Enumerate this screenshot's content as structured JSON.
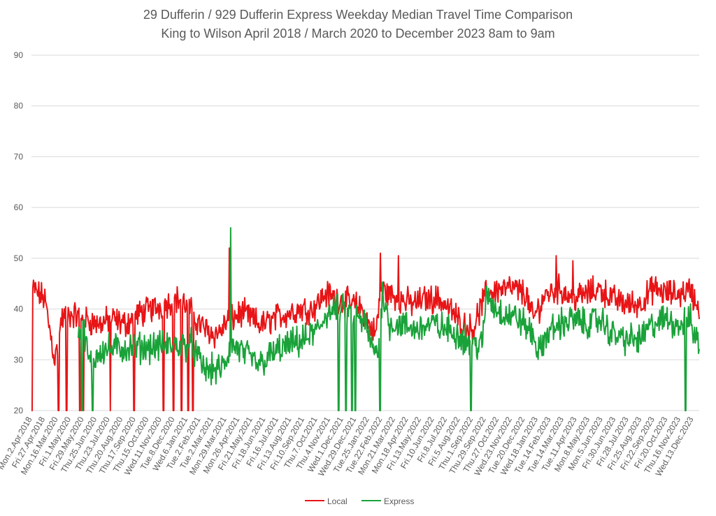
{
  "chart_data": {
    "type": "line",
    "title": "29 Dufferin / 929 Dufferin Express Weekday Median Travel Time Comparison",
    "subtitle": "King to Wilson April 2018 / March 2020 to December 2023 8am to 9am",
    "xlabel": "",
    "ylabel": "",
    "ylim": [
      20,
      90
    ],
    "yticks": [
      20,
      30,
      40,
      50,
      60,
      70,
      80,
      90
    ],
    "grid": true,
    "legend_position": "bottom",
    "x_tick_labels": [
      "Mon.2.Apr.2018",
      "Fri.27.Apr.2018",
      "Mon.16.Mar.2020",
      "Fri.1.May.2020",
      "Fri.29.May.2020",
      "Thu.25.Jun.2020",
      "Thu.23.Jul.2020",
      "Thu.20.Aug.2020",
      "Thu.17.Sep.2020",
      "Thu.15.Oct.2020",
      "Wed.11.Nov.2020",
      "Tue.8.Dec.2020",
      "Wed.6.Jan.2021",
      "Tue.2.Feb.2021",
      "Tue.2.Mar.2021",
      "Mon.29.Mar.2021",
      "Mon.26.Apr.2021",
      "Fri.21.May.2021",
      "Fri.18.Jun.2021",
      "Fri.16.Jul.2021",
      "Fri.13.Aug.2021",
      "Fri.10.Sep.2021",
      "Thu.7.Oct.2021",
      "Thu.4.Nov.2021",
      "Wed.1.Dec.2021",
      "Wed.29.Dec.2021",
      "Tue.25.Jan.2022",
      "Tue.22.Feb.2022",
      "Mon.21.Mar.2022",
      "Mon.18.Apr.2022",
      "Fri.13.May.2022",
      "Fri.10.Jun.2022",
      "Fri.8.Jul.2022",
      "Fri.5.Aug.2022",
      "Thu.1.Sep.2022",
      "Thu.29.Sep.2022",
      "Thu.27.Oct.2022",
      "Wed.23.Nov.2022",
      "Tue.20.Dec.2022",
      "Wed.18.Jan.2023",
      "Tue.14.Feb.2023",
      "Tue.14.Mar.2023",
      "Tue.11.Apr.2023",
      "Mon.8.May.2023",
      "Mon.5.Jun.2023",
      "Fri.30.Jun.2023",
      "Fri.28.Jul.2023",
      "Fri.25.Aug.2023",
      "Fri.22.Sep.2023",
      "Fri.20.Oct.2023",
      "Thu.16.Nov.2023",
      "Wed.13.Dec.2023"
    ],
    "num_points": 1000,
    "series": [
      {
        "name": "Local",
        "color": "#e81416",
        "profile": [
          [
            0,
            42
          ],
          [
            2,
            44
          ],
          [
            10,
            43
          ],
          [
            20,
            42
          ],
          [
            26,
            37
          ],
          [
            35,
            30
          ],
          [
            38,
            32
          ],
          [
            45,
            38
          ],
          [
            60,
            39
          ],
          [
            80,
            38
          ],
          [
            100,
            37
          ],
          [
            120,
            38
          ],
          [
            140,
            37
          ],
          [
            160,
            39
          ],
          [
            180,
            40
          ],
          [
            200,
            41
          ],
          [
            220,
            42
          ],
          [
            236,
            40
          ],
          [
            245,
            38
          ],
          [
            260,
            36
          ],
          [
            275,
            35
          ],
          [
            285,
            36
          ],
          [
            295,
            38
          ],
          [
            300,
            38
          ],
          [
            310,
            39
          ],
          [
            320,
            39
          ],
          [
            330,
            38
          ],
          [
            340,
            37
          ],
          [
            350,
            37
          ],
          [
            360,
            38
          ],
          [
            380,
            39
          ],
          [
            400,
            40
          ],
          [
            420,
            40
          ],
          [
            440,
            43
          ],
          [
            460,
            42
          ],
          [
            480,
            41
          ],
          [
            495,
            40
          ],
          [
            505,
            37
          ],
          [
            515,
            35
          ],
          [
            523,
            44
          ],
          [
            535,
            43
          ],
          [
            550,
            42
          ],
          [
            570,
            41
          ],
          [
            590,
            42
          ],
          [
            610,
            42
          ],
          [
            625,
            40
          ],
          [
            645,
            37
          ],
          [
            660,
            36
          ],
          [
            680,
            43
          ],
          [
            700,
            44
          ],
          [
            720,
            44
          ],
          [
            740,
            43
          ],
          [
            750,
            38
          ],
          [
            770,
            43
          ],
          [
            790,
            44
          ],
          [
            810,
            42
          ],
          [
            830,
            43
          ],
          [
            850,
            44
          ],
          [
            870,
            42
          ],
          [
            890,
            41
          ],
          [
            910,
            41
          ],
          [
            930,
            44
          ],
          [
            950,
            43
          ],
          [
            970,
            43
          ],
          [
            985,
            44
          ],
          [
            995,
            41
          ],
          [
            999,
            40
          ]
        ],
        "spikes": [
          {
            "x": 296,
            "y": 52
          },
          {
            "x": 522,
            "y": 51
          },
          {
            "x": 549,
            "y": 50.5
          },
          {
            "x": 785,
            "y": 50.5
          },
          {
            "x": 810,
            "y": 49.5
          }
        ],
        "drops": [
          0,
          1,
          40,
          41,
          52,
          53,
          72,
          73,
          78,
          118,
          153,
          154,
          197,
          198,
          212,
          213,
          224,
          225,
          234,
          235,
          241,
          242
        ]
      },
      {
        "name": "Express",
        "color": "#1aa23a",
        "start_index": 70,
        "profile": [
          [
            70,
            36
          ],
          [
            80,
            35
          ],
          [
            85,
            30
          ],
          [
            90,
            29
          ],
          [
            95,
            30
          ],
          [
            100,
            32
          ],
          [
            240,
            33
          ],
          [
            250,
            30
          ],
          [
            260,
            28
          ],
          [
            280,
            28
          ],
          [
            290,
            29
          ],
          [
            298,
            33
          ],
          [
            310,
            32
          ],
          [
            320,
            31
          ],
          [
            330,
            30
          ],
          [
            340,
            29
          ],
          [
            350,
            30
          ],
          [
            370,
            32
          ],
          [
            390,
            33
          ],
          [
            410,
            34
          ],
          [
            430,
            36
          ],
          [
            440,
            39
          ],
          [
            460,
            40
          ],
          [
            480,
            39
          ],
          [
            500,
            37
          ],
          [
            510,
            32
          ],
          [
            520,
            32
          ],
          [
            525,
            44
          ],
          [
            535,
            37
          ],
          [
            550,
            37
          ],
          [
            570,
            36
          ],
          [
            600,
            37
          ],
          [
            620,
            36
          ],
          [
            640,
            35
          ],
          [
            660,
            33
          ],
          [
            675,
            33
          ],
          [
            680,
            43
          ],
          [
            695,
            40
          ],
          [
            710,
            39
          ],
          [
            730,
            38
          ],
          [
            750,
            35
          ],
          [
            760,
            31
          ],
          [
            770,
            35
          ],
          [
            790,
            37
          ],
          [
            810,
            38
          ],
          [
            830,
            37
          ],
          [
            850,
            38
          ],
          [
            870,
            35
          ],
          [
            890,
            34
          ],
          [
            910,
            34
          ],
          [
            930,
            37
          ],
          [
            950,
            38
          ],
          [
            970,
            37
          ],
          [
            985,
            38
          ],
          [
            995,
            34
          ],
          [
            999,
            33
          ]
        ],
        "spikes": [
          {
            "x": 298,
            "y": 56
          },
          {
            "x": 522,
            "y": 48
          }
        ],
        "drops": [
          75,
          76,
          91,
          92,
          459,
          460,
          470,
          471,
          479,
          480,
          484,
          485,
          521,
          522,
          657,
          658,
          978,
          979
        ]
      }
    ]
  }
}
